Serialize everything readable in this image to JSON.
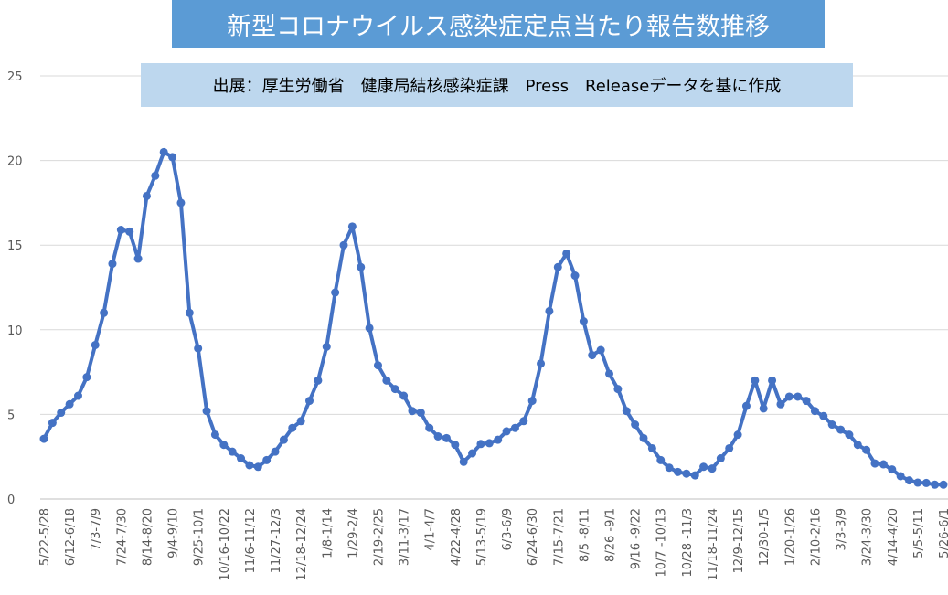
{
  "chart_data": {
    "type": "line",
    "title": "新型コロナウイルス感染症定点当たり報告数推移",
    "subtitle": "出展：厚生労働省　健康局結核感染症課　Press　Releaseデータを基に作成",
    "color": "#4472c4",
    "categories": [
      "5/22-5/28",
      null,
      null,
      "6/12-6/18",
      null,
      null,
      "7/3-7/9",
      null,
      null,
      "7/24-7/30",
      null,
      null,
      "8/14-8/20",
      null,
      null,
      "9/4-9/10",
      null,
      null,
      "9/25-10/1",
      null,
      null,
      "10/16-10/22",
      null,
      null,
      "11/6-11/12",
      null,
      null,
      "11/27-12/3",
      null,
      null,
      "12/18-12/24",
      null,
      null,
      "1/8-1/14",
      null,
      null,
      "1/29-2/4",
      null,
      null,
      "2/19-2/25",
      null,
      null,
      "3/11-3/17",
      null,
      null,
      "4/1-4/7",
      null,
      null,
      "4/22-4/28",
      null,
      null,
      "5/13-5/19",
      null,
      null,
      "6/3-6/9",
      null,
      null,
      "6/24-6/30",
      null,
      null,
      "7/15-7/21",
      null,
      null,
      "8/5 -8/11",
      null,
      null,
      "8/26 -9/1",
      null,
      null,
      "9/16 -9/22",
      null,
      null,
      "10/7 -10/13",
      null,
      null,
      "10/28 -11/3",
      null,
      null,
      "11/18-11/24",
      null,
      null,
      "12/9-12/15",
      null,
      null,
      "12/30-1/5",
      null,
      null,
      "1/20-1/26",
      null,
      null,
      "2/10-2/16",
      null,
      null,
      "3/3-3/9",
      null,
      null,
      "3/24-3/30",
      null,
      null,
      "4/14-4/20",
      null,
      null,
      "5/5-5/11",
      null,
      null,
      "5/26-6/1"
    ],
    "values": [
      3.56,
      4.5,
      5.1,
      5.6,
      6.1,
      7.2,
      9.1,
      11.0,
      13.9,
      15.9,
      15.8,
      14.2,
      17.9,
      19.1,
      20.5,
      20.2,
      17.5,
      11.0,
      8.9,
      5.2,
      3.8,
      3.2,
      2.8,
      2.4,
      2.0,
      1.9,
      2.3,
      2.8,
      3.5,
      4.2,
      4.6,
      5.8,
      7.0,
      9.0,
      12.2,
      15.0,
      16.1,
      13.7,
      10.1,
      7.9,
      7.0,
      6.5,
      6.1,
      5.2,
      5.1,
      4.2,
      3.7,
      3.6,
      3.2,
      2.2,
      2.7,
      3.25,
      3.3,
      3.5,
      4.0,
      4.2,
      4.6,
      5.8,
      8.0,
      11.1,
      13.7,
      14.5,
      13.2,
      10.5,
      8.5,
      8.8,
      7.4,
      6.5,
      5.2,
      4.4,
      3.6,
      3.0,
      2.3,
      1.85,
      1.6,
      1.5,
      1.4,
      1.9,
      1.8,
      2.4,
      3.0,
      3.8,
      5.5,
      7.0,
      5.35,
      7.0,
      5.6,
      6.05,
      6.05,
      5.8,
      5.2,
      4.9,
      4.4,
      4.1,
      3.8,
      3.2,
      2.9,
      2.1,
      2.05,
      1.75,
      1.35,
      1.1,
      0.97,
      0.95,
      0.85,
      0.85
    ],
    "ylim": [
      0,
      25
    ],
    "yticks": [
      0,
      5,
      10,
      15,
      20,
      25
    ],
    "grid": true
  }
}
